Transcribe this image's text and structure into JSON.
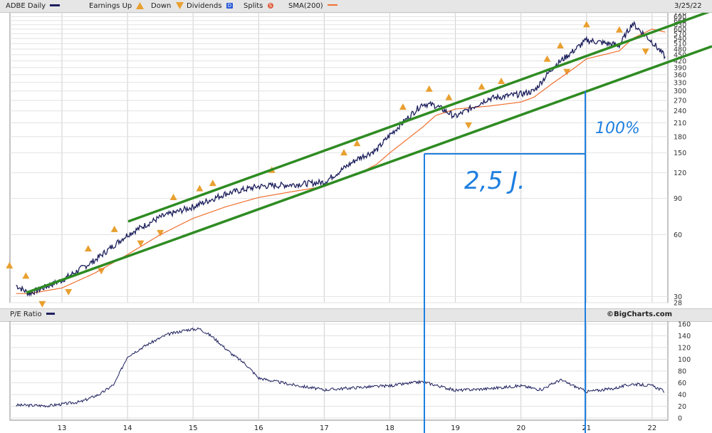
{
  "header": {
    "ticker_label": "ADBE Daily",
    "earnings_up_label": "Earnings Up",
    "down_label": "Down",
    "dividends_label": "Dividends",
    "dividends_badge": "D",
    "splits_label": "Splits",
    "splits_badge": "S",
    "sma_label": "SMA(200)",
    "date": "3/25/22"
  },
  "lower_panel": {
    "label": "P/E Ratio",
    "credit": "©BigCharts.com"
  },
  "annotations": {
    "percent": "100%",
    "duration": "2,5 J."
  },
  "colors": {
    "price": "#1c1f5c",
    "sma": "#f07030",
    "channel": "#2e8b22",
    "annotation": "#1e7fe0",
    "earnings_marker": "#e8a030"
  },
  "chart_data": [
    {
      "type": "line",
      "title": "ADBE Daily",
      "scale": "log",
      "x": [
        "12.3",
        "12.5",
        "13.0",
        "13.5",
        "14.0",
        "14.5",
        "15.0",
        "15.5",
        "16.0",
        "16.5",
        "17.0",
        "17.5",
        "17.8",
        "18.0",
        "18.5",
        "18.7",
        "19.0",
        "19.5",
        "20.0",
        "20.2",
        "20.5",
        "20.8",
        "21.0",
        "21.5",
        "21.7",
        "22.0",
        "22.2"
      ],
      "series": [
        {
          "name": "ADBE Daily",
          "values": [
            34,
            31,
            36,
            45,
            60,
            73,
            82,
            95,
            103,
            105,
            108,
            140,
            155,
            183,
            260,
            255,
            225,
            275,
            290,
            300,
            395,
            470,
            530,
            500,
            640,
            520,
            440
          ]
        },
        {
          "name": "SMA(200)",
          "values": [
            31,
            31,
            33,
            39,
            48,
            60,
            72,
            82,
            91,
            97,
            103,
            118,
            132,
            150,
            200,
            228,
            245,
            253,
            265,
            280,
            330,
            385,
            430,
            470,
            540,
            600,
            580
          ]
        }
      ],
      "x_ticks": [
        "13",
        "14",
        "15",
        "16",
        "17",
        "18",
        "19",
        "20",
        "21",
        "22"
      ],
      "y_ticks": [
        28,
        30,
        60,
        90,
        120,
        150,
        180,
        210,
        240,
        270,
        300,
        330,
        360,
        390,
        420,
        450,
        480,
        510,
        540,
        570,
        600,
        630,
        660,
        690,
        720
      ],
      "ylim": [
        28,
        720
      ],
      "markers": {
        "earnings_up": [
          12.2,
          12.45,
          13.4,
          13.8,
          14.7,
          15.1,
          15.3,
          16.2,
          17.3,
          17.5,
          18.2,
          18.6,
          18.9,
          19.4,
          19.7,
          20.4,
          20.6,
          21.0,
          21.5
        ],
        "earnings_down": [
          12.7,
          13.1,
          13.6,
          14.2,
          14.5,
          19.2,
          20.7,
          21.9
        ]
      },
      "grid": true
    },
    {
      "type": "line",
      "title": "P/E Ratio",
      "x": [
        "12.3",
        "12.8",
        "13.3",
        "13.6",
        "13.8",
        "14.0",
        "14.3",
        "14.6",
        "14.9",
        "15.1",
        "15.3",
        "15.6",
        "15.8",
        "16.0",
        "16.5",
        "17.0",
        "17.5",
        "18.0",
        "18.5",
        "19.0",
        "19.5",
        "20.0",
        "20.3",
        "20.6",
        "21.0",
        "21.4",
        "21.7",
        "22.0",
        "22.2"
      ],
      "series": [
        {
          "name": "P/E Ratio",
          "values": [
            22,
            21,
            28,
            42,
            58,
            105,
            125,
            142,
            150,
            152,
            138,
            108,
            92,
            68,
            57,
            48,
            52,
            55,
            62,
            47,
            50,
            55,
            48,
            65,
            45,
            50,
            58,
            55,
            45
          ]
        }
      ],
      "y_ticks": [
        0,
        20,
        40,
        60,
        80,
        100,
        120,
        140,
        160
      ],
      "ylim": [
        0,
        160
      ],
      "x_ticks": [
        "13",
        "14",
        "15",
        "16",
        "17",
        "18",
        "19",
        "20",
        "21",
        "22"
      ],
      "grid": true
    }
  ]
}
